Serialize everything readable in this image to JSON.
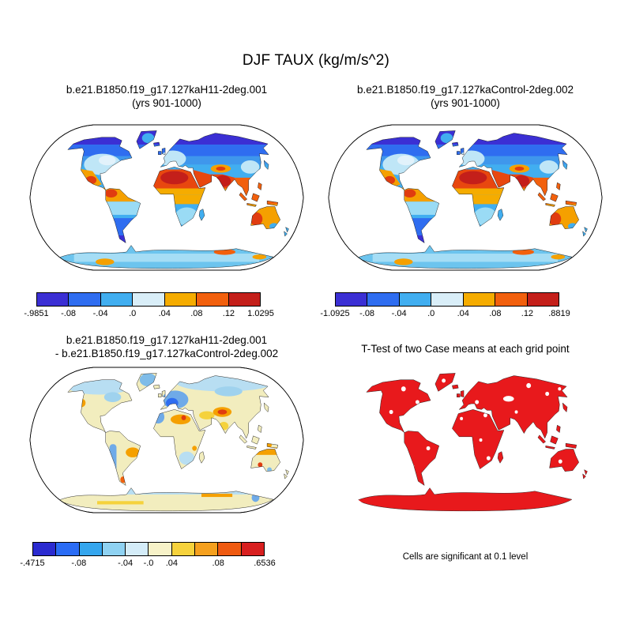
{
  "main_title": "DJF TAUX (kg/m/s^2)",
  "panels": [
    {
      "id": "case1",
      "title_line1": "b.e21.B1850.f19_g17.127kaH11-2deg.001",
      "title_line2": "(yrs 901-1000)",
      "colorbar": {
        "labels": [
          "-.9851",
          "-.08",
          "-.04",
          ".0",
          ".04",
          ".08",
          ".12",
          "1.0295"
        ],
        "positions": [
          0,
          0.1429,
          0.2857,
          0.4286,
          0.5714,
          0.7143,
          0.8571,
          1
        ],
        "colors": [
          "#3b2fd4",
          "#2f6df0",
          "#41aef0",
          "#d9eef8",
          "#f5ac00",
          "#f2600d",
          "#c41f1a"
        ]
      }
    },
    {
      "id": "case2",
      "title_line1": "b.e21.B1850.f19_g17.127kaControl-2deg.002",
      "title_line2": "(yrs 901-1000)",
      "colorbar": {
        "labels": [
          "-1.0925",
          "-.08",
          "-.04",
          ".0",
          ".04",
          ".08",
          ".12",
          ".8819"
        ],
        "positions": [
          0,
          0.1429,
          0.2857,
          0.4286,
          0.5714,
          0.7143,
          0.8571,
          1
        ],
        "colors": [
          "#3b2fd4",
          "#2f6df0",
          "#41aef0",
          "#d9eef8",
          "#f5ac00",
          "#f2600d",
          "#c41f1a"
        ]
      }
    },
    {
      "id": "difference",
      "title_line1": "b.e21.B1850.f19_g17.127kaH11-2deg.001",
      "title_line2": "- b.e21.B1850.f19_g17.127kaControl-2deg.002",
      "colorbar": {
        "labels": [
          "-.4715",
          "-.08",
          "-.04",
          "-.0",
          ".04",
          ".08",
          ".6536"
        ],
        "positions": [
          0,
          0.2,
          0.4,
          0.5,
          0.6,
          0.8,
          1
        ],
        "colors": [
          "#2b2bd0",
          "#2a6cf5",
          "#35a6ee",
          "#8fd2f2",
          "#d4ecf8",
          "#f7f2c8",
          "#f6d23c",
          "#f5a01e",
          "#ef5a10",
          "#d81f1f"
        ]
      }
    },
    {
      "id": "ttest",
      "title_line1": "T-Test of two Case means at each grid point",
      "caption": "Cells are significant at 0.1 level",
      "significant_color": "#e8191c"
    }
  ],
  "chart_data": [
    {
      "type": "heatmap",
      "projection": "robinson-world-map",
      "variable": "DJF TAUX (kg/m/s^2)",
      "title": "b.e21.B1850.f19_g17.127kaH11-2deg.001",
      "subtitle": "(yrs 901-1000)",
      "min": -0.9851,
      "max": 1.0295,
      "levels": [
        -0.9851,
        -0.08,
        -0.04,
        0.0,
        0.04,
        0.08,
        0.12,
        1.0295
      ],
      "legend_colors": [
        "#3b2fd4",
        "#2f6df0",
        "#41aef0",
        "#d9eef8",
        "#f5ac00",
        "#f2600d",
        "#c41f1a"
      ],
      "legend_position": "bottom"
    },
    {
      "type": "heatmap",
      "projection": "robinson-world-map",
      "variable": "DJF TAUX (kg/m/s^2)",
      "title": "b.e21.B1850.f19_g17.127kaControl-2deg.002",
      "subtitle": "(yrs 901-1000)",
      "min": -1.0925,
      "max": 0.8819,
      "levels": [
        -1.0925,
        -0.08,
        -0.04,
        0.0,
        0.04,
        0.08,
        0.12,
        0.8819
      ],
      "legend_colors": [
        "#3b2fd4",
        "#2f6df0",
        "#41aef0",
        "#d9eef8",
        "#f5ac00",
        "#f2600d",
        "#c41f1a"
      ],
      "legend_position": "bottom"
    },
    {
      "type": "heatmap",
      "projection": "robinson-world-map",
      "variable": "DJF TAUX (kg/m/s^2)",
      "title": "b.e21.B1850.f19_g17.127kaH11-2deg.001 - b.e21.B1850.f19_g17.127kaControl-2deg.002",
      "min": -0.4715,
      "max": 0.6536,
      "levels": [
        -0.4715,
        -0.08,
        -0.04,
        -0.0,
        0.04,
        0.08,
        0.6536
      ],
      "legend_colors": [
        "#2b2bd0",
        "#2a6cf5",
        "#35a6ee",
        "#8fd2f2",
        "#d4ecf8",
        "#f7f2c8",
        "#f6d23c",
        "#f5a01e",
        "#ef5a10",
        "#d81f1f"
      ],
      "legend_position": "bottom"
    },
    {
      "type": "heatmap",
      "projection": "robinson-world-map",
      "title": "T-Test of two Case means at each grid point",
      "annotation": "Cells are significant at 0.1 level",
      "significant_color": "#e8191c"
    }
  ]
}
